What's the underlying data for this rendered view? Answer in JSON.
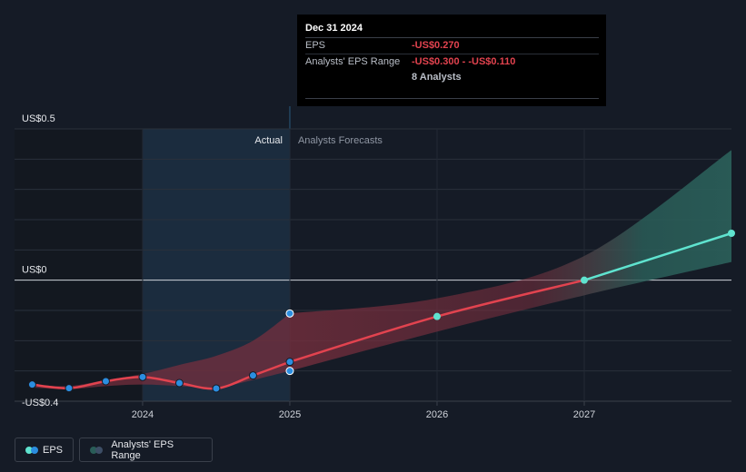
{
  "tooltip": {
    "date": "Dec 31 2024",
    "eps_label": "EPS",
    "eps_value": "-US$0.270",
    "range_label": "Analysts' EPS Range",
    "range_value": "-US$0.300 - -US$0.110",
    "analysts": "8 Analysts"
  },
  "regions": {
    "actual": "Actual",
    "forecast": "Analysts Forecasts"
  },
  "legend": {
    "eps": "EPS",
    "range": "Analysts' EPS Range"
  },
  "colors": {
    "background": "#151b26",
    "actual_shade": "#1d3347",
    "eps_line": "#e2434f",
    "forecast_line": "#5fe3cf",
    "actual_point": "#2b8ee0",
    "forecast_range": "#2a5d58",
    "past_range": "#7a2f3e"
  },
  "chart_data": {
    "type": "line",
    "y_tick_labels": [
      "US$0.5",
      "US$0",
      "-US$0.4"
    ],
    "y_ticks": [
      0.5,
      0,
      -0.4
    ],
    "x_ticks": [
      2024,
      2025,
      2026,
      2027
    ],
    "x_tick_labels": [
      "2024",
      "2025",
      "2026",
      "2027"
    ],
    "xlim": [
      2023.13,
      2028.0
    ],
    "ylim": [
      -0.4,
      0.5
    ],
    "series": [
      {
        "name": "EPS",
        "role": "actual",
        "x": [
          2023.25,
          2023.5,
          2023.75,
          2024.0,
          2024.25,
          2024.5,
          2024.75,
          2025.0
        ],
        "y": [
          -0.345,
          -0.357,
          -0.334,
          -0.32,
          -0.34,
          -0.358,
          -0.315,
          -0.27
        ]
      },
      {
        "name": "EPS",
        "role": "forecast",
        "x": [
          2025.0,
          2026.0,
          2027.0,
          2028.0
        ],
        "y": [
          -0.27,
          -0.12,
          0.0,
          0.155
        ]
      }
    ],
    "extra_points": [
      {
        "x": 2025.0,
        "y": -0.11
      },
      {
        "x": 2025.0,
        "y": -0.3
      }
    ],
    "range_band": {
      "name": "Analysts' EPS Range",
      "x": [
        2025.0,
        2026.0,
        2027.0,
        2028.0
      ],
      "low": [
        -0.3,
        -0.17,
        -0.05,
        0.06
      ],
      "high": [
        -0.11,
        -0.06,
        0.08,
        0.43
      ]
    },
    "past_band": {
      "x": [
        2023.25,
        2023.5,
        2023.75,
        2024.0,
        2024.25,
        2024.5,
        2024.75,
        2025.0
      ],
      "low": [
        -0.355,
        -0.36,
        -0.35,
        -0.345,
        -0.35,
        -0.355,
        -0.33,
        -0.3
      ],
      "high": [
        -0.345,
        -0.35,
        -0.33,
        -0.31,
        -0.28,
        -0.25,
        -0.2,
        -0.11
      ]
    },
    "actual_until": 2025.0
  }
}
